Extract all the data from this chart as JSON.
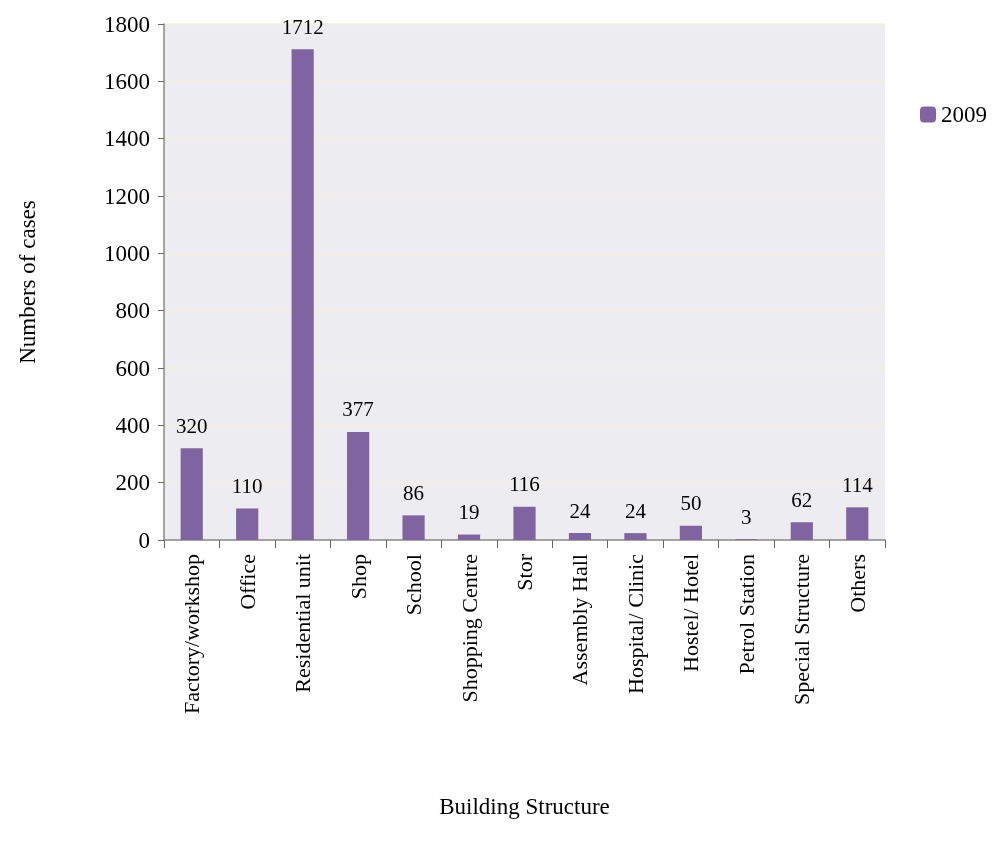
{
  "chart_data": {
    "type": "bar",
    "xlabel": "Building Structure",
    "ylabel": "Numbers of cases",
    "categories": [
      "Factory/workshop",
      "Office",
      "Residential unit",
      "Shop",
      "School",
      "Shopping Centre",
      "Stor",
      "Assembly Hall",
      "Hospital/ Clinic",
      "Hostel/ Hotel",
      "Petrol Station",
      "Special Structure",
      "Others"
    ],
    "series": [
      {
        "name": "2009",
        "color": "#8064a2",
        "values": [
          320,
          110,
          1712,
          377,
          86,
          19,
          116,
          24,
          24,
          50,
          3,
          62,
          114
        ]
      }
    ],
    "ylim": [
      0,
      1800
    ],
    "yticks": [
      0,
      200,
      400,
      600,
      800,
      1000,
      1200,
      1400,
      1600,
      1800
    ],
    "grid": "y",
    "legend": "top right",
    "data_labels": true
  }
}
